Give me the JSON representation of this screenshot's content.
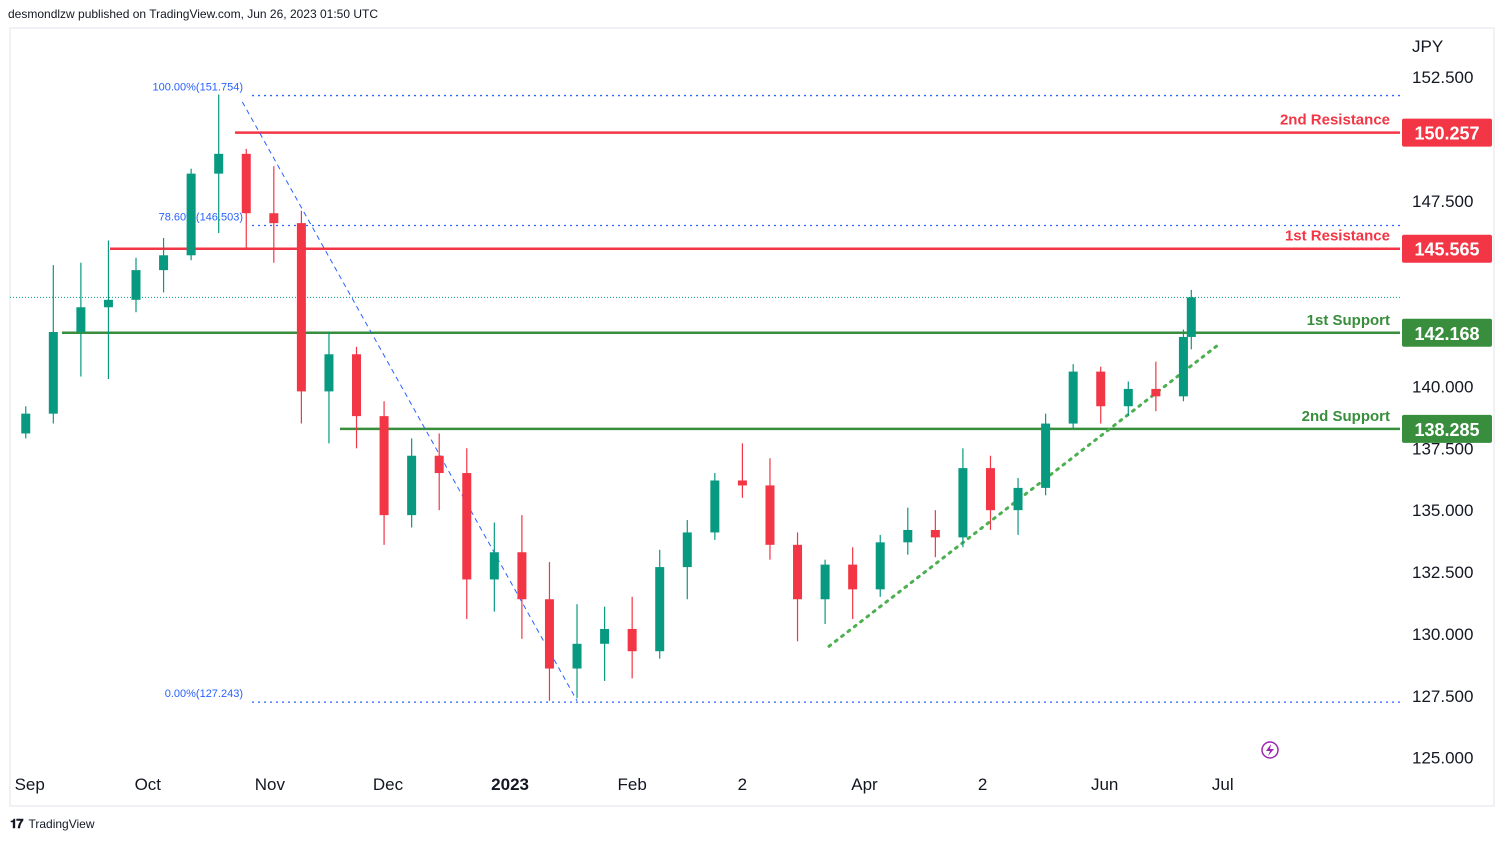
{
  "header": {
    "publisher_line": "desmondlzw published on TradingView.com, Jun 26, 2023 01:50 UTC"
  },
  "footer": {
    "brand": "TradingView",
    "logo_icon": "tradingview-logo-icon"
  },
  "chart_data": {
    "type": "candlestick",
    "currency": "JPY",
    "y_ticks": [
      "152.500",
      "147.500",
      "140.000",
      "137.500",
      "135.000",
      "132.500",
      "130.000",
      "127.500",
      "125.000"
    ],
    "x_ticks": [
      "Sep",
      "Oct",
      "Nov",
      "Dec",
      "2023",
      "Feb",
      "2",
      "Apr",
      "2",
      "Jun",
      "Jul"
    ],
    "ylim": [
      124.5,
      154.0
    ],
    "grid": false,
    "levels": [
      {
        "label": "2nd Resistance",
        "value": 150.257,
        "value_label": "150.257",
        "color": "#f23645"
      },
      {
        "label": "1st Resistance",
        "value": 145.565,
        "value_label": "145.565",
        "color": "#f23645"
      },
      {
        "label": "1st Support",
        "value": 142.168,
        "value_label": "142.168",
        "color": "#388e3c"
      },
      {
        "label": "2nd Support",
        "value": 138.285,
        "value_label": "138.285",
        "color": "#388e3c"
      }
    ],
    "fibonacci": [
      {
        "label": "100.00%(151.754)",
        "value": 151.754
      },
      {
        "label": "78.60%(146.503)",
        "value": 146.503
      },
      {
        "label": "0.00%(127.243)",
        "value": 127.243
      }
    ],
    "current_price_line": 143.6,
    "trendline": {
      "from": {
        "date": "2023-03-23",
        "price": 129.5
      },
      "to": {
        "date": "2023-06-30",
        "price": 141.7
      },
      "style": "dotted",
      "color": "#4caf50"
    },
    "fib_trendline": {
      "from": {
        "date": "2022-10-25",
        "price": 151.5
      },
      "to": {
        "date": "2023-01-18",
        "price": 127.3
      },
      "style": "dashed",
      "color": "#2962ff"
    },
    "colors": {
      "up": "#089981",
      "down": "#f23645",
      "axis_text": "#131722",
      "fib": "#2962ff"
    },
    "icons": {
      "replay": "lightning-replay-icon"
    },
    "series": [
      {
        "date": "2022-08-31",
        "open": 138.1,
        "high": 139.2,
        "low": 137.9,
        "close": 138.9
      },
      {
        "date": "2022-09-07",
        "open": 138.9,
        "high": 144.9,
        "low": 138.5,
        "close": 142.2
      },
      {
        "date": "2022-09-14",
        "open": 142.2,
        "high": 145.0,
        "low": 140.4,
        "close": 143.2
      },
      {
        "date": "2022-09-21",
        "open": 143.2,
        "high": 145.9,
        "low": 140.3,
        "close": 143.5
      },
      {
        "date": "2022-09-28",
        "open": 143.5,
        "high": 145.2,
        "low": 143.0,
        "close": 144.7
      },
      {
        "date": "2022-10-05",
        "open": 144.7,
        "high": 146.0,
        "low": 143.8,
        "close": 145.3
      },
      {
        "date": "2022-10-12",
        "open": 145.3,
        "high": 148.8,
        "low": 145.1,
        "close": 148.6
      },
      {
        "date": "2022-10-19",
        "open": 148.6,
        "high": 151.8,
        "low": 146.2,
        "close": 149.4
      },
      {
        "date": "2022-10-26",
        "open": 149.4,
        "high": 149.6,
        "low": 145.6,
        "close": 147.0
      },
      {
        "date": "2022-11-02",
        "open": 147.0,
        "high": 148.9,
        "low": 145.0,
        "close": 146.6
      },
      {
        "date": "2022-11-09",
        "open": 146.6,
        "high": 147.1,
        "low": 138.5,
        "close": 139.8
      },
      {
        "date": "2022-11-16",
        "open": 139.8,
        "high": 142.2,
        "low": 137.7,
        "close": 141.3
      },
      {
        "date": "2022-11-23",
        "open": 141.3,
        "high": 141.6,
        "low": 137.5,
        "close": 138.8
      },
      {
        "date": "2022-11-30",
        "open": 138.8,
        "high": 139.4,
        "low": 133.6,
        "close": 134.8
      },
      {
        "date": "2022-12-07",
        "open": 134.8,
        "high": 137.9,
        "low": 134.3,
        "close": 137.2
      },
      {
        "date": "2022-12-14",
        "open": 137.2,
        "high": 138.1,
        "low": 135.0,
        "close": 136.5
      },
      {
        "date": "2022-12-21",
        "open": 136.5,
        "high": 137.5,
        "low": 130.6,
        "close": 132.2
      },
      {
        "date": "2022-12-28",
        "open": 132.2,
        "high": 134.5,
        "low": 130.9,
        "close": 133.3
      },
      {
        "date": "2023-01-04",
        "open": 133.3,
        "high": 134.8,
        "low": 129.8,
        "close": 131.4
      },
      {
        "date": "2023-01-11",
        "open": 131.4,
        "high": 132.9,
        "low": 127.3,
        "close": 128.6
      },
      {
        "date": "2023-01-18",
        "open": 128.6,
        "high": 131.2,
        "low": 127.4,
        "close": 129.6
      },
      {
        "date": "2023-01-25",
        "open": 129.6,
        "high": 131.1,
        "low": 128.1,
        "close": 130.2
      },
      {
        "date": "2023-02-01",
        "open": 130.2,
        "high": 131.5,
        "low": 128.2,
        "close": 129.3
      },
      {
        "date": "2023-02-08",
        "open": 129.3,
        "high": 133.4,
        "low": 129.0,
        "close": 132.7
      },
      {
        "date": "2023-02-15",
        "open": 132.7,
        "high": 134.6,
        "low": 131.4,
        "close": 134.1
      },
      {
        "date": "2023-02-22",
        "open": 134.1,
        "high": 136.5,
        "low": 133.8,
        "close": 136.2
      },
      {
        "date": "2023-03-01",
        "open": 136.2,
        "high": 137.7,
        "low": 135.5,
        "close": 136.0
      },
      {
        "date": "2023-03-08",
        "open": 136.0,
        "high": 137.1,
        "low": 133.0,
        "close": 133.6
      },
      {
        "date": "2023-03-15",
        "open": 133.6,
        "high": 134.1,
        "low": 129.7,
        "close": 131.4
      },
      {
        "date": "2023-03-22",
        "open": 131.4,
        "high": 133.0,
        "low": 130.4,
        "close": 132.8
      },
      {
        "date": "2023-03-29",
        "open": 132.8,
        "high": 133.5,
        "low": 130.6,
        "close": 131.8
      },
      {
        "date": "2023-04-05",
        "open": 131.8,
        "high": 134.0,
        "low": 131.5,
        "close": 133.7
      },
      {
        "date": "2023-04-12",
        "open": 133.7,
        "high": 135.1,
        "low": 133.2,
        "close": 134.2
      },
      {
        "date": "2023-04-19",
        "open": 134.2,
        "high": 135.0,
        "low": 133.1,
        "close": 133.9
      },
      {
        "date": "2023-04-26",
        "open": 133.9,
        "high": 137.5,
        "low": 133.5,
        "close": 136.7
      },
      {
        "date": "2023-05-03",
        "open": 136.7,
        "high": 137.2,
        "low": 134.2,
        "close": 135.0
      },
      {
        "date": "2023-05-10",
        "open": 135.0,
        "high": 136.3,
        "low": 134.0,
        "close": 135.9
      },
      {
        "date": "2023-05-17",
        "open": 135.9,
        "high": 138.9,
        "low": 135.6,
        "close": 138.5
      },
      {
        "date": "2023-05-24",
        "open": 138.5,
        "high": 140.9,
        "low": 138.3,
        "close": 140.6
      },
      {
        "date": "2023-05-31",
        "open": 140.6,
        "high": 140.8,
        "low": 138.5,
        "close": 139.2
      },
      {
        "date": "2023-06-07",
        "open": 139.2,
        "high": 140.2,
        "low": 138.8,
        "close": 139.9
      },
      {
        "date": "2023-06-14",
        "open": 139.9,
        "high": 141.0,
        "low": 139.0,
        "close": 139.6
      },
      {
        "date": "2023-06-21",
        "open": 139.6,
        "high": 142.3,
        "low": 139.4,
        "close": 142.0
      },
      {
        "date": "2023-06-23",
        "open": 142.0,
        "high": 143.9,
        "low": 141.5,
        "close": 143.6
      }
    ]
  }
}
